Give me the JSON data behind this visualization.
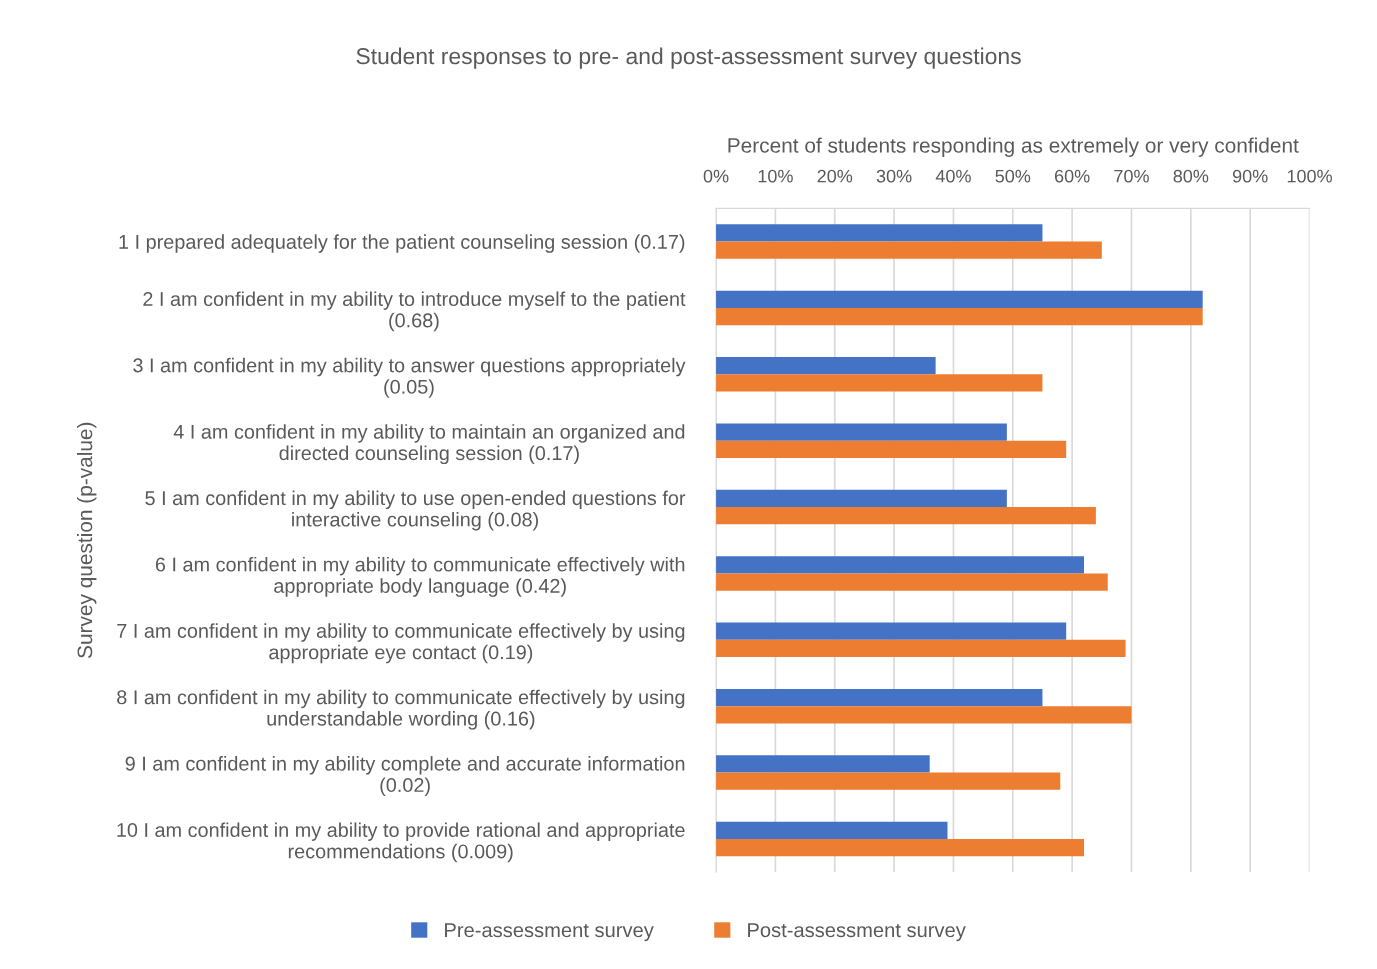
{
  "chart_data": {
    "type": "bar",
    "orientation": "horizontal",
    "title": "Student responses to pre- and post-assessment survey questions",
    "xlabel": "Percent of students responding as extremely or very confident",
    "ylabel": "Survey question (p-value)",
    "categories": [
      "1 I prepared adequately for the patient counseling session (0.17)",
      "2 I am confident in my ability to introduce myself to the patient\n(0.68)",
      "3 I am confident in my ability to answer questions appropriately\n(0.05)",
      "4 I am confident in my ability to maintain an organized and\ndirected counseling session (0.17)",
      "5 I am confident in my ability to use open-ended questions for\ninteractive counseling (0.08)",
      "6 I am confident in my ability to communicate effectively with\nappropriate body language (0.42)",
      "7 I am confident in my ability to communicate effectively by using\nappropriate eye contact (0.19)",
      "8 I am confident in my ability to communicate effectively by using\nunderstandable wording (0.16)",
      "9 I am confident in my ability complete and accurate information\n(0.02)",
      "10 I am confident in my ability to provide rational and appropriate\nrecommendations (0.009)"
    ],
    "series": [
      {
        "name": "Pre-assessment survey",
        "color": "#4472c4",
        "values": [
          55,
          82,
          37,
          49,
          49,
          62,
          59,
          55,
          36,
          39
        ]
      },
      {
        "name": "Post-assessment survey",
        "color": "#ed7d31",
        "values": [
          65,
          82,
          55,
          59,
          64,
          66,
          69,
          70,
          58,
          62
        ]
      }
    ],
    "xlim": [
      0,
      100
    ],
    "xticks": [
      {
        "value": 0,
        "label": "0%"
      },
      {
        "value": 10,
        "label": "10%"
      },
      {
        "value": 20,
        "label": "20%"
      },
      {
        "value": 30,
        "label": "30%"
      },
      {
        "value": 40,
        "label": "40%"
      },
      {
        "value": 50,
        "label": "50%"
      },
      {
        "value": 60,
        "label": "60%"
      },
      {
        "value": 70,
        "label": "70%"
      },
      {
        "value": 80,
        "label": "80%"
      },
      {
        "value": 90,
        "label": "90%"
      },
      {
        "value": 100,
        "label": "100%"
      }
    ],
    "grid": "x",
    "legend": "bottom"
  }
}
